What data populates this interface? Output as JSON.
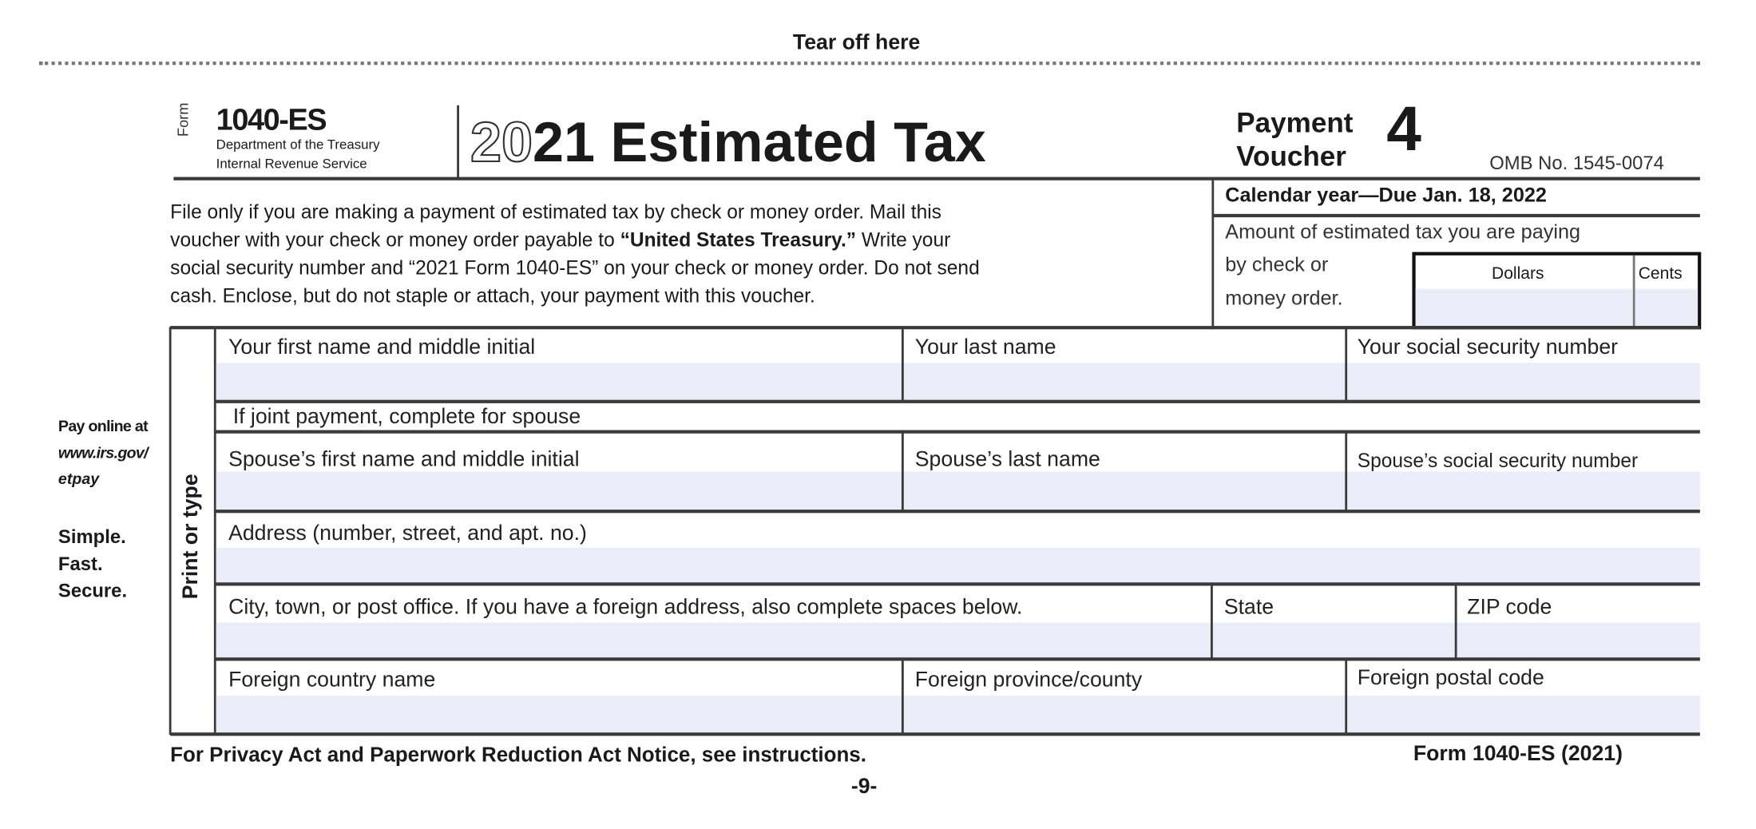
{
  "tear_off": "Tear off here",
  "header": {
    "form_word": "Form",
    "form_number": "1040-ES",
    "dept": "Department of the Treasury",
    "irs": "Internal Revenue Service",
    "year_outline": "20",
    "year_bold": "21",
    "title": "Estimated Tax",
    "payment": "Payment",
    "voucher": "Voucher",
    "voucher_number": "4",
    "omb": "OMB No. 1545-0074"
  },
  "instructions": {
    "line1": "File only if you are making a payment of estimated tax by check or money order. Mail this",
    "line2_pre": "voucher with your check or money order payable to ",
    "line2_bold": "“United States Treasury.”",
    "line2_post": " Write your",
    "line3": "social security number and “2021 Form 1040-ES” on your check or money order. Do not send",
    "line4": "cash. Enclose, but do not staple or attach, your payment with this voucher."
  },
  "due": "Calendar year—Due Jan. 18, 2022",
  "amount": {
    "line1": "Amount of estimated tax you are paying",
    "line2": "by check or",
    "line3": "money order.",
    "dollars_label": "Dollars",
    "cents_label": "Cents",
    "dollars_value": "",
    "cents_value": ""
  },
  "sidebar": {
    "pay_online": "Pay online at",
    "url1": "www.irs.gov/",
    "url2": "etpay",
    "simple": "Simple.",
    "fast": "Fast.",
    "secure": "Secure.",
    "print_or_type": "Print or type"
  },
  "fields": {
    "first_name": {
      "label": "Your first name and middle initial",
      "value": ""
    },
    "last_name": {
      "label": "Your last name",
      "value": ""
    },
    "ssn": {
      "label": "Your social security number",
      "value": ""
    },
    "joint_note": "If joint payment, complete for spouse",
    "spouse_first": {
      "label": "Spouse’s first name and middle initial",
      "value": ""
    },
    "spouse_last": {
      "label": "Spouse’s last name",
      "value": ""
    },
    "spouse_ssn": {
      "label": "Spouse’s social security number",
      "value": ""
    },
    "address": {
      "label": "Address (number, street, and apt. no.)",
      "value": ""
    },
    "city": {
      "label": "City, town, or post office. If you have a foreign address, also complete spaces below.",
      "value": ""
    },
    "state": {
      "label": "State",
      "value": ""
    },
    "zip": {
      "label": "ZIP code",
      "value": ""
    },
    "foreign_country": {
      "label": "Foreign country name",
      "value": ""
    },
    "foreign_province": {
      "label": "Foreign province/county",
      "value": ""
    },
    "foreign_postal": {
      "label": "Foreign postal code",
      "value": ""
    }
  },
  "footer": {
    "privacy": "For Privacy Act and Paperwork Reduction Act Notice, see instructions.",
    "form_ref": "Form 1040-ES (2021)",
    "page": "-9-"
  },
  "colors": {
    "field_fill": "#eaecf8",
    "rule": "#3a3a3a"
  }
}
